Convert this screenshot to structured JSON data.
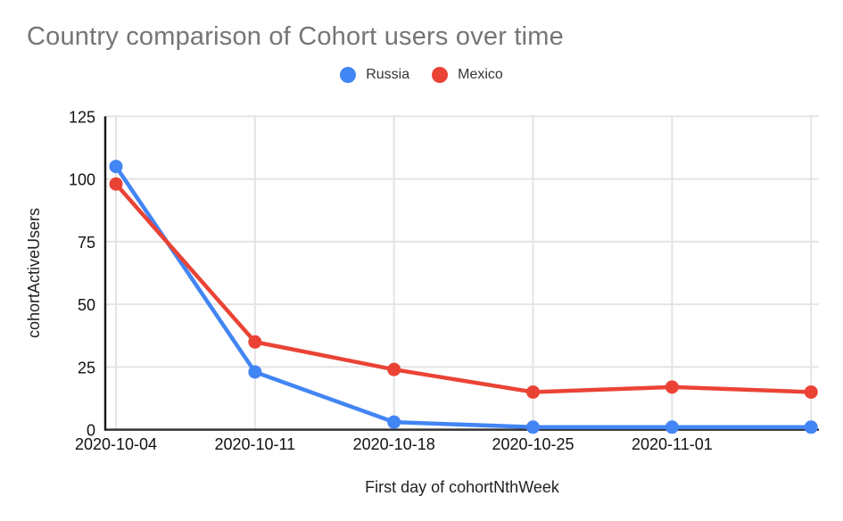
{
  "chart_data": {
    "type": "line",
    "title": "Country comparison of Cohort users over time",
    "title_color": "#757575",
    "xlabel": "First day of cohortNthWeek",
    "ylabel": "cohortActiveUsers",
    "categories": [
      "2020-10-04",
      "2020-10-11",
      "2020-10-18",
      "2020-10-25",
      "2020-11-01",
      ""
    ],
    "series": [
      {
        "name": "Russia",
        "color": "#4285F4",
        "values": [
          105,
          23,
          3,
          1,
          1,
          1
        ]
      },
      {
        "name": "Mexico",
        "color": "#EA4335",
        "values": [
          98,
          35,
          24,
          15,
          17,
          15
        ]
      }
    ],
    "ylim": [
      0,
      125
    ],
    "yticks": [
      0,
      25,
      50,
      75,
      100,
      125
    ],
    "grid": true,
    "legend_position": "top",
    "colors": {
      "grid": "#e4e4e4",
      "axis": "#333333",
      "y_axis_line": "#1a1a1a",
      "tick_text": "#111111",
      "axis_title_text": "#222222",
      "background": "#ffffff"
    }
  }
}
